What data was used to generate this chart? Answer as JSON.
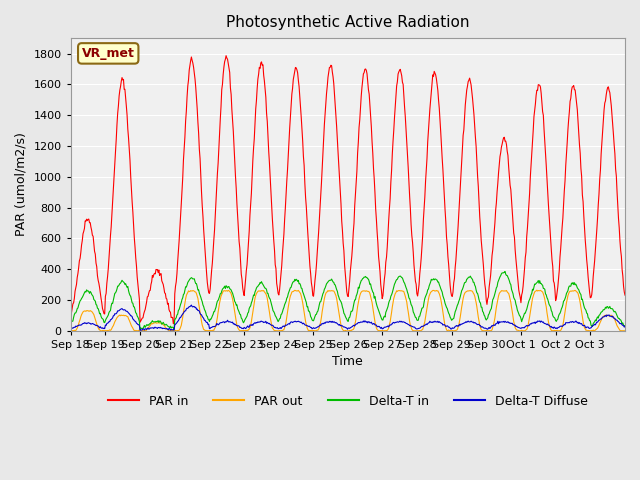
{
  "title": "Photosynthetic Active Radiation",
  "ylabel": "PAR (umol/m2/s)",
  "xlabel": "Time",
  "label_text": "VR_met",
  "ylim": [
    0,
    1900
  ],
  "yticks": [
    0,
    200,
    400,
    600,
    800,
    1000,
    1200,
    1400,
    1600,
    1800
  ],
  "xtick_labels": [
    "Sep 18",
    "Sep 19",
    "Sep 20",
    "Sep 21",
    "Sep 22",
    "Sep 23",
    "Sep 24",
    "Sep 25",
    "Sep 26",
    "Sep 27",
    "Sep 28",
    "Sep 29",
    "Sep 30",
    "Oct 1",
    "Oct 2",
    "Oct 3"
  ],
  "colors": {
    "PAR_in": "#FF0000",
    "PAR_out": "#FFA500",
    "Delta_T_in": "#00BB00",
    "Delta_T_Diffuse": "#0000CC"
  },
  "legend_labels": [
    "PAR in",
    "PAR out",
    "Delta-T in",
    "Delta-T Diffuse"
  ],
  "background_color": "#E8E8E8",
  "axes_bg": "#F0F0F0",
  "grid_color": "#FFFFFF",
  "n_days": 16,
  "par_in_peaks": [
    730,
    1630,
    390,
    1760,
    1780,
    1750,
    1700,
    1720,
    1700,
    1700,
    1680,
    1630,
    1250,
    1600,
    1590,
    1580
  ],
  "par_out_peaks": [
    130,
    100,
    50,
    260,
    260,
    260,
    260,
    260,
    260,
    260,
    260,
    260,
    260,
    260,
    260,
    100
  ],
  "delta_t_peaks": [
    260,
    320,
    60,
    340,
    290,
    310,
    330,
    330,
    350,
    350,
    340,
    350,
    380,
    320,
    310,
    155
  ],
  "delta_d_peaks": [
    50,
    140,
    20,
    160,
    60,
    60,
    60,
    60,
    60,
    60,
    60,
    60,
    60,
    60,
    60,
    100
  ]
}
